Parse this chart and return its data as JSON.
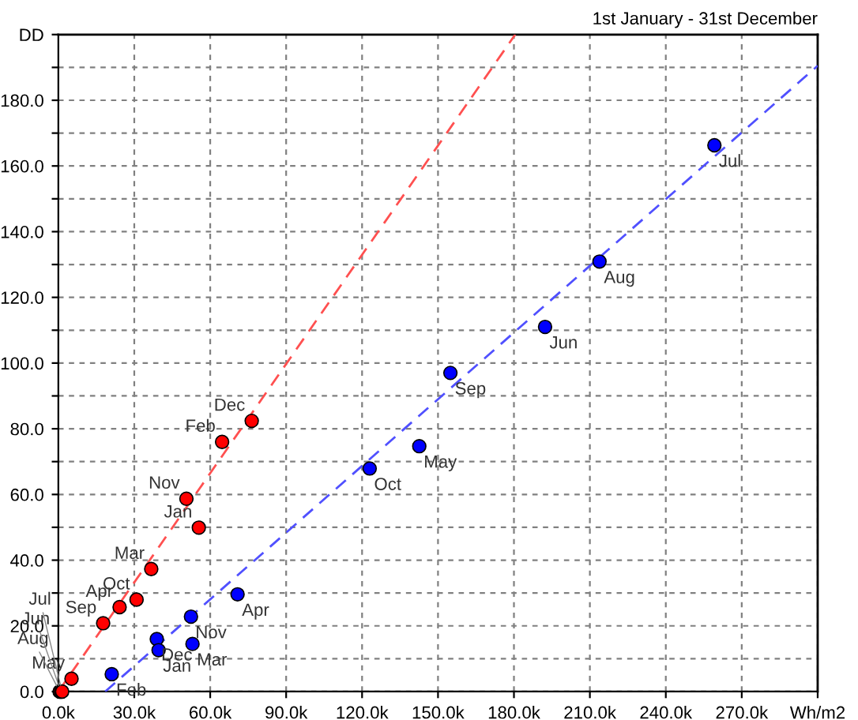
{
  "chart_data": {
    "type": "scatter",
    "subtitle": "1st January - 31st December",
    "xlim": [
      0,
      300
    ],
    "ylim": [
      0,
      200
    ],
    "xticks": [
      {
        "value": 0,
        "label": "0.0k"
      },
      {
        "value": 30,
        "label": "30.0k"
      },
      {
        "value": 60,
        "label": "60.0k"
      },
      {
        "value": 90,
        "label": "90.0k"
      },
      {
        "value": 120,
        "label": "120.0k"
      },
      {
        "value": 150,
        "label": "150.0k"
      },
      {
        "value": 180,
        "label": "180.0k"
      },
      {
        "value": 210,
        "label": "210.0k"
      },
      {
        "value": 240,
        "label": "240.0k"
      },
      {
        "value": 270,
        "label": "270.0k"
      },
      {
        "value": 300,
        "label": "Wh/m2"
      }
    ],
    "yticks": [
      {
        "value": 0,
        "label": "0.0"
      },
      {
        "value": 10,
        "label": null
      },
      {
        "value": 20,
        "label": "20.0"
      },
      {
        "value": 30,
        "label": null
      },
      {
        "value": 40,
        "label": "40.0"
      },
      {
        "value": 50,
        "label": null
      },
      {
        "value": 60,
        "label": "60.0"
      },
      {
        "value": 70,
        "label": null
      },
      {
        "value": 80,
        "label": "80.0"
      },
      {
        "value": 90,
        "label": null
      },
      {
        "value": 100,
        "label": "100.0"
      },
      {
        "value": 110,
        "label": null
      },
      {
        "value": 120,
        "label": "120.0"
      },
      {
        "value": 130,
        "label": null
      },
      {
        "value": 140,
        "label": "140.0"
      },
      {
        "value": 150,
        "label": null
      },
      {
        "value": 160,
        "label": "160.0"
      },
      {
        "value": 170,
        "label": null
      },
      {
        "value": 180,
        "label": "180.0"
      },
      {
        "value": 190,
        "label": null
      },
      {
        "value": 200,
        "label": "DD"
      }
    ],
    "grid": true,
    "series": [
      {
        "type": "scatter",
        "marker": "circle",
        "color": "#0000ff",
        "x": [
          259.2,
          213.8,
          192.3,
          154.9,
          142.6,
          123.0,
          70.8,
          52.4,
          53.0,
          38.9,
          39.6,
          21.1
        ],
        "values": [
          166.3,
          130.9,
          111.0,
          97.0,
          74.7,
          67.9,
          29.6,
          22.8,
          14.5,
          16.0,
          12.6,
          5.3
        ]
      },
      {
        "type": "scatter",
        "marker": "circle",
        "color": "#ff0000",
        "x": [
          76.4,
          64.7,
          50.6,
          55.5,
          36.7,
          30.9,
          24.2,
          17.7,
          5.2,
          0.5,
          1.0,
          1.5
        ],
        "values": [
          82.4,
          76.0,
          58.7,
          49.9,
          37.3,
          28.0,
          25.7,
          20.8,
          3.9,
          0,
          0,
          0
        ]
      },
      {
        "type": "line",
        "color": "#5050ff",
        "line_style": "dashed",
        "x": [
          18.5,
          300
        ],
        "values": [
          0,
          190.5
        ]
      },
      {
        "type": "line",
        "color": "#ff5050",
        "line_style": "dashed",
        "x": [
          0,
          180.5
        ],
        "values": [
          0,
          200
        ]
      }
    ],
    "annotations": [
      {
        "text": "Jul",
        "x": 259.2,
        "y": 166.3
      },
      {
        "text": "Aug",
        "x": 213.8,
        "y": 130.9
      },
      {
        "text": "Jun",
        "x": 192.3,
        "y": 111.0
      },
      {
        "text": "Sep",
        "x": 154.9,
        "y": 97.0
      },
      {
        "text": "May",
        "x": 142.6,
        "y": 74.7
      },
      {
        "text": "Oct",
        "x": 123.0,
        "y": 67.9
      },
      {
        "text": "Apr",
        "x": 70.8,
        "y": 29.6
      },
      {
        "text": "Nov",
        "x": 52.4,
        "y": 22.8
      },
      {
        "text": "Mar",
        "x": 53.0,
        "y": 14.5
      },
      {
        "text": "Dec",
        "x": 38.9,
        "y": 16.0
      },
      {
        "text": "Jan",
        "x": 39.6,
        "y": 12.6
      },
      {
        "text": "Feb",
        "x": 21.1,
        "y": 5.3
      },
      {
        "text": "Dec",
        "x": 76.4,
        "y": 82.4
      },
      {
        "text": "Feb",
        "x": 64.7,
        "y": 76.0
      },
      {
        "text": "Nov",
        "x": 50.6,
        "y": 58.7
      },
      {
        "text": "Jan",
        "x": 55.5,
        "y": 49.9
      },
      {
        "text": "Mar",
        "x": 36.7,
        "y": 37.3
      },
      {
        "text": "Oct",
        "x": 30.9,
        "y": 28.0
      },
      {
        "text": "Apr",
        "x": 24.2,
        "y": 25.7
      },
      {
        "text": "Sep",
        "x": 17.7,
        "y": 20.8
      },
      {
        "text": "May",
        "x": 5.2,
        "y": 3.9
      },
      {
        "text": "Aug",
        "x": 0.5,
        "y": 0
      },
      {
        "text": "Jun",
        "x": 1.0,
        "y": 0
      },
      {
        "text": "Jul",
        "x": 1.5,
        "y": 0
      }
    ]
  }
}
